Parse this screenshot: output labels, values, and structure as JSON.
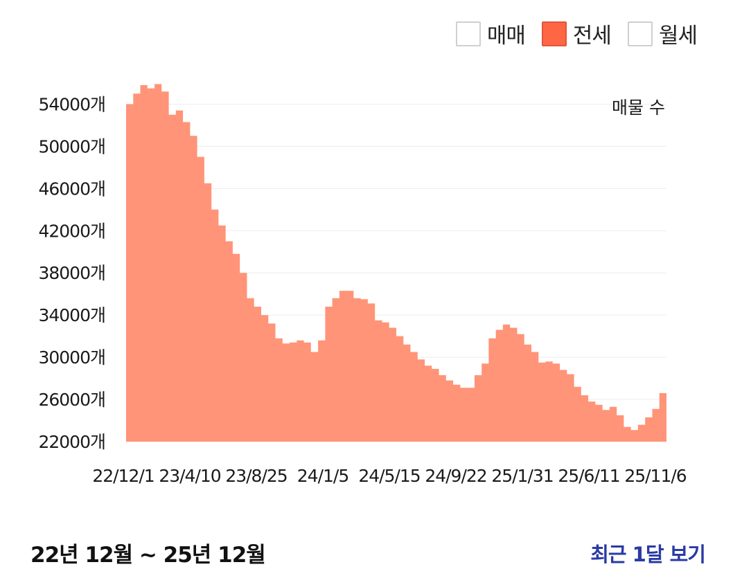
{
  "legend": {
    "items": [
      {
        "label": "매매",
        "active": false
      },
      {
        "label": "전세",
        "active": true
      },
      {
        "label": "월세",
        "active": false
      }
    ]
  },
  "colors": {
    "area_fill": "#ff9478",
    "legend_active": "#ff6644",
    "grid": "#ececec"
  },
  "chart_data": {
    "type": "area",
    "ylabel": "매물 수",
    "unit": "개",
    "ylim": [
      22000,
      56000
    ],
    "y_ticks": [
      22000,
      26000,
      30000,
      34000,
      38000,
      42000,
      46000,
      50000,
      54000
    ],
    "x_tick_labels": [
      "22/12/1",
      "23/4/10",
      "23/8/25",
      "24/1/5",
      "24/5/15",
      "24/9/22",
      "25/1/31",
      "25/6/11",
      "25/11/6"
    ],
    "grid": "horizontal",
    "series": [
      {
        "values": [
          54000,
          55000,
          55800,
          55500,
          55900,
          55200,
          53000,
          53400,
          52300,
          51000,
          49000,
          46500,
          44000,
          42500,
          41000,
          39800,
          38000,
          35600,
          34800,
          34000,
          33200,
          31800,
          31300,
          31400,
          31600,
          31400,
          30500,
          31600,
          34800,
          35600,
          36300,
          36300,
          35600,
          35500,
          35100,
          33500,
          33300,
          32800,
          32000,
          31200,
          30500,
          29800,
          29200,
          28900,
          28300,
          27800,
          27400,
          27100,
          27100,
          28300,
          29400,
          31800,
          32600,
          33100,
          32800,
          32200,
          31200,
          30500,
          29500,
          29600,
          29400,
          28800,
          28400,
          27200,
          26400,
          25800,
          25500,
          25000,
          25300,
          24500,
          23400,
          23100,
          23600,
          24300,
          25100,
          26600,
          25500
        ]
      }
    ]
  },
  "footer": {
    "range_label": "22년 12월 ~ 25년 12월",
    "recent_link": "최근 1달 보기"
  }
}
